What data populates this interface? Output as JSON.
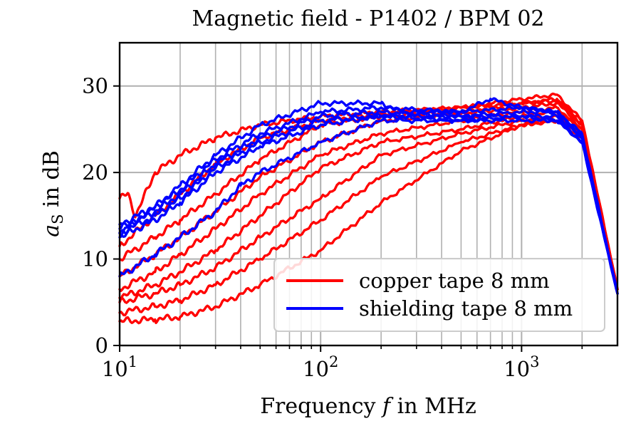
{
  "chart_data": {
    "type": "line",
    "title": "Magnetic field - P1402 / BPM 02",
    "xlabel": "Frequency f in MHz",
    "ylabel": "aS in dB",
    "xscale": "log",
    "xlim": [
      10,
      3000
    ],
    "ylim": [
      0,
      35
    ],
    "x_ticks": [
      10,
      100,
      1000
    ],
    "x_tick_labels": [
      "10^1",
      "10^2",
      "10^3"
    ],
    "y_ticks": [
      0,
      10,
      20,
      30
    ],
    "y_tick_labels": [
      "0",
      "10",
      "20",
      "30"
    ],
    "grid": true,
    "legend_position": "lower-right",
    "legend": [
      {
        "label": "copper tape 8 mm",
        "color": "#ff0000"
      },
      {
        "label": "shielding tape 8 mm",
        "color": "#0000ff"
      }
    ],
    "series": [
      {
        "group": "copper tape 8 mm",
        "color": "#ff0000",
        "x": [
          10,
          11,
          12,
          15,
          20,
          30,
          50,
          100,
          200,
          500,
          1000,
          1500,
          2000,
          3000
        ],
        "y": [
          17,
          17.5,
          15,
          20,
          22,
          24,
          25.5,
          26.5,
          27,
          27.5,
          28,
          28.3,
          26,
          6.5
        ]
      },
      {
        "group": "copper tape 8 mm",
        "color": "#ff0000",
        "x": [
          10,
          15,
          20,
          30,
          50,
          100,
          200,
          500,
          1000,
          1500,
          2000,
          3000
        ],
        "y": [
          11.5,
          15,
          17.5,
          21,
          24,
          26,
          26.8,
          27.5,
          28.5,
          29,
          26,
          6.5
        ]
      },
      {
        "group": "copper tape 8 mm",
        "color": "#ff0000",
        "x": [
          10,
          15,
          20,
          30,
          50,
          100,
          200,
          500,
          1000,
          1500,
          2000,
          3000
        ],
        "y": [
          10,
          12.5,
          14.5,
          17.5,
          21.5,
          25.5,
          26.5,
          27,
          28,
          28.5,
          25.5,
          6.5
        ]
      },
      {
        "group": "copper tape 8 mm",
        "color": "#ff0000",
        "x": [
          10,
          15,
          20,
          30,
          50,
          100,
          200,
          500,
          1000,
          1500,
          2000,
          3000
        ],
        "y": [
          8,
          10.5,
          12.5,
          15.5,
          19.5,
          23.5,
          26,
          26.8,
          27.5,
          28,
          25.5,
          6.5
        ]
      },
      {
        "group": "copper tape 8 mm",
        "color": "#ff0000",
        "x": [
          10,
          15,
          20,
          30,
          50,
          100,
          200,
          500,
          1000,
          1500,
          2000,
          3000
        ],
        "y": [
          6.5,
          8.5,
          10.5,
          13.5,
          17.5,
          22,
          24.5,
          26,
          27,
          27.5,
          25,
          6.5
        ]
      },
      {
        "group": "copper tape 8 mm",
        "color": "#ff0000",
        "x": [
          10,
          15,
          20,
          30,
          50,
          100,
          200,
          500,
          1000,
          1500,
          2000,
          3000
        ],
        "y": [
          5.5,
          7,
          8.5,
          11,
          15,
          20.5,
          23.5,
          25,
          26.5,
          27,
          25,
          6.5
        ]
      },
      {
        "group": "copper tape 8 mm",
        "color": "#ff0000",
        "x": [
          10,
          15,
          20,
          30,
          50,
          100,
          200,
          500,
          1000,
          1500,
          2000,
          3000
        ],
        "y": [
          5,
          6,
          7,
          9,
          12.5,
          17,
          22,
          24.5,
          26,
          26.5,
          24.5,
          6.5
        ]
      },
      {
        "group": "copper tape 8 mm",
        "color": "#ff0000",
        "x": [
          10,
          15,
          20,
          30,
          50,
          100,
          200,
          500,
          1000,
          1500,
          2000,
          3000
        ],
        "y": [
          3.8,
          4.5,
          5.2,
          7,
          10,
          14.5,
          19.5,
          23.5,
          25.5,
          26,
          24.5,
          6.5
        ]
      },
      {
        "group": "copper tape 8 mm",
        "color": "#ff0000",
        "x": [
          10,
          15,
          20,
          30,
          50,
          100,
          200,
          500,
          1000,
          1500,
          2000,
          3000
        ],
        "y": [
          2.8,
          3,
          3.3,
          4.5,
          7,
          11,
          16.5,
          22.5,
          25.5,
          26,
          24,
          6.5
        ]
      },
      {
        "group": "shielding tape 8 mm",
        "color": "#0000ff",
        "x": [
          10,
          15,
          20,
          30,
          50,
          100,
          200,
          250,
          500,
          700,
          1000,
          1500,
          2000,
          3000
        ],
        "y": [
          14,
          16,
          18.5,
          22,
          25.5,
          28,
          28,
          27,
          27,
          28.5,
          27.5,
          27,
          24.5,
          6
        ]
      },
      {
        "group": "shielding tape 8 mm",
        "color": "#0000ff",
        "x": [
          10,
          15,
          20,
          30,
          50,
          100,
          200,
          500,
          1000,
          1500,
          2000,
          3000
        ],
        "y": [
          13,
          16,
          18,
          21.5,
          24.5,
          27,
          27.5,
          27,
          27.5,
          27,
          24,
          6
        ]
      },
      {
        "group": "shielding tape 8 mm",
        "color": "#0000ff",
        "x": [
          10,
          15,
          20,
          30,
          50,
          100,
          200,
          500,
          1000,
          1500,
          2000,
          3000
        ],
        "y": [
          13.5,
          15.5,
          17.5,
          21,
          24,
          26.5,
          27,
          26.5,
          27,
          27,
          24,
          6
        ]
      },
      {
        "group": "shielding tape 8 mm",
        "color": "#0000ff",
        "x": [
          10,
          15,
          20,
          30,
          50,
          100,
          200,
          500,
          1000,
          1500,
          2000,
          3000
        ],
        "y": [
          13,
          15,
          17,
          20.5,
          23.5,
          26,
          26.5,
          26.5,
          26.5,
          26.5,
          24,
          6
        ]
      },
      {
        "group": "shielding tape 8 mm",
        "color": "#0000ff",
        "x": [
          10,
          15,
          20,
          30,
          50,
          100,
          200,
          500,
          1000,
          1500,
          2000,
          3000
        ],
        "y": [
          12.5,
          14.5,
          16.5,
          20,
          23,
          25.5,
          26.5,
          26,
          26.5,
          26,
          23.5,
          6
        ]
      },
      {
        "group": "shielding tape 8 mm",
        "color": "#0000ff",
        "x": [
          10,
          15,
          20,
          30,
          40,
          50,
          100,
          200,
          500,
          1000,
          1500,
          2000,
          3000
        ],
        "y": [
          8,
          10.5,
          12.5,
          15.5,
          18.5,
          20,
          23.5,
          26,
          26,
          26,
          26,
          23.5,
          6
        ]
      }
    ]
  }
}
